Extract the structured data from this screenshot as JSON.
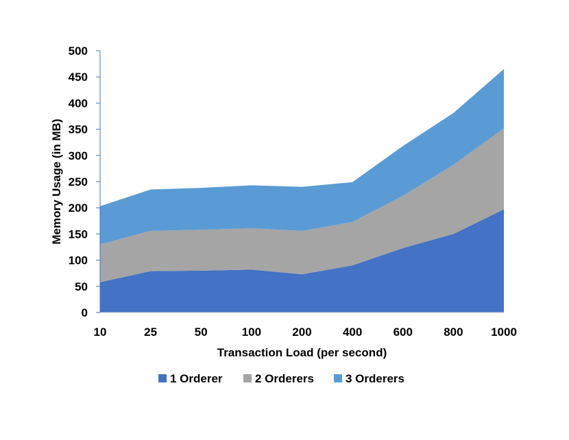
{
  "chart_data": {
    "type": "area",
    "stacked": true,
    "title": "",
    "xlabel": "Transaction Load (per second)",
    "ylabel": "Memory Usage (in MB)",
    "categories": [
      "10",
      "25",
      "50",
      "100",
      "200",
      "400",
      "600",
      "800",
      "1000"
    ],
    "ylim": [
      0,
      500
    ],
    "yticks": [
      0,
      50,
      100,
      150,
      200,
      250,
      300,
      350,
      400,
      450,
      500
    ],
    "grid": false,
    "legend_position": "bottom",
    "series": [
      {
        "name": "1 Orderer",
        "color": "#4472C4",
        "values": [
          58,
          79,
          80,
          82,
          73,
          90,
          123,
          150,
          197
        ]
      },
      {
        "name": "2 Orderers",
        "color": "#A5A5A5",
        "values": [
          72,
          77,
          78,
          79,
          83,
          83,
          100,
          132,
          155
        ]
      },
      {
        "name": "3 Orderers",
        "color": "#5B9BD5",
        "values": [
          73,
          79,
          80,
          82,
          84,
          76,
          95,
          99,
          113
        ]
      }
    ]
  }
}
